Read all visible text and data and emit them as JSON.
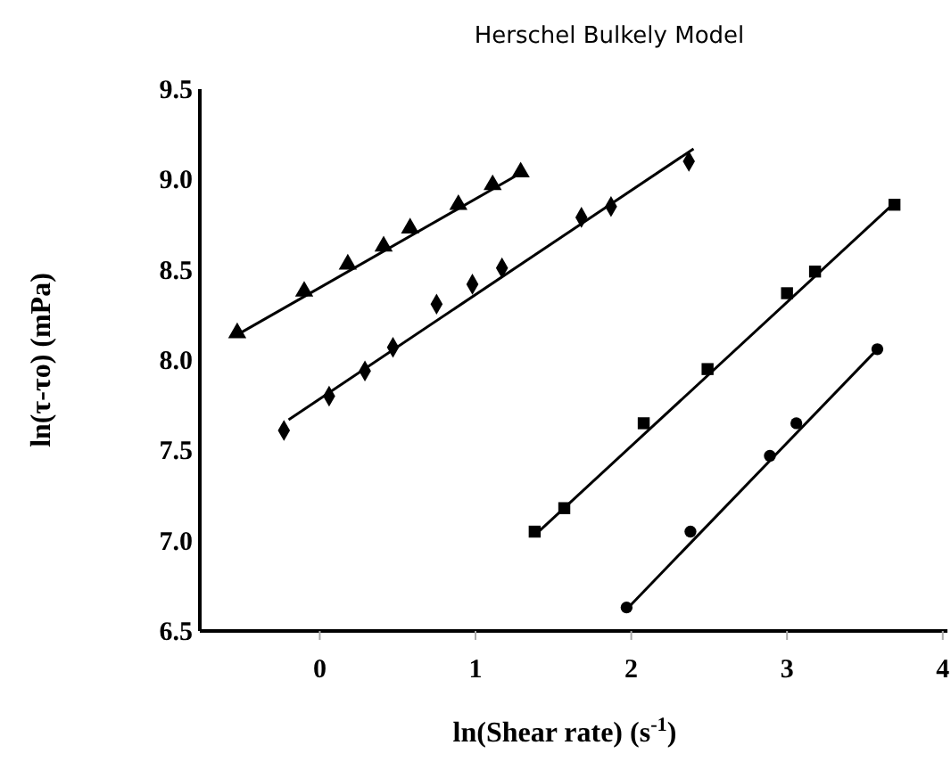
{
  "chart_data": {
    "type": "scatter",
    "title": "Herschel Bulkely Model",
    "xlabel": "ln(Shear rate) (s$^{-1}$)",
    "ylabel": "ln(τ-τo) (mPa)",
    "xlim": [
      -0.77,
      4.03
    ],
    "xticks": [
      0,
      1,
      2,
      3,
      4
    ],
    "ylim": [
      6.5,
      9.5
    ],
    "yticks": [
      6.5,
      {
        "value": 7,
        "label": "7.0"
      },
      7.5,
      {
        "value": 8,
        "label": "8.0"
      },
      8.5,
      {
        "value": 9,
        "label": "9.0"
      },
      9.5
    ],
    "grid": false,
    "series": [
      {
        "marker": "triangle",
        "color": "#000000",
        "x": [
          -0.53,
          -0.1,
          0.18,
          0.41,
          0.58,
          0.89,
          1.11,
          1.29
        ],
        "values": [
          8.15,
          8.38,
          8.53,
          8.63,
          8.73,
          8.86,
          8.97,
          9.04
        ]
      },
      {
        "type": "line",
        "marker": "none",
        "color": "#000000",
        "x": [
          -0.53,
          1.3
        ],
        "values": [
          8.14,
          9.04
        ]
      },
      {
        "marker": "diamond",
        "color": "#000000",
        "x": [
          -0.23,
          0.06,
          0.29,
          0.47,
          0.75,
          0.98,
          1.17,
          1.68,
          1.87,
          2.37
        ],
        "values": [
          7.61,
          7.8,
          7.94,
          8.07,
          8.31,
          8.42,
          8.51,
          8.79,
          8.85,
          9.1
        ]
      },
      {
        "type": "line",
        "marker": "none",
        "color": "#000000",
        "x": [
          -0.2,
          2.4
        ],
        "values": [
          7.67,
          9.17
        ]
      },
      {
        "marker": "square",
        "color": "#000000",
        "x": [
          1.38,
          1.57,
          2.08,
          2.49,
          3.0,
          3.18,
          3.69
        ],
        "values": [
          7.05,
          7.18,
          7.65,
          7.95,
          8.37,
          8.49,
          8.86
        ]
      },
      {
        "type": "line",
        "marker": "none",
        "color": "#000000",
        "x": [
          1.38,
          3.69
        ],
        "values": [
          7.03,
          8.87
        ]
      },
      {
        "marker": "circle",
        "color": "#000000",
        "x": [
          1.97,
          2.38,
          2.89,
          3.06,
          3.58
        ],
        "values": [
          6.63,
          7.05,
          7.47,
          7.65,
          8.06
        ]
      },
      {
        "type": "line",
        "marker": "none",
        "color": "#000000",
        "x": [
          1.97,
          3.58
        ],
        "values": [
          6.62,
          8.06
        ]
      }
    ]
  }
}
